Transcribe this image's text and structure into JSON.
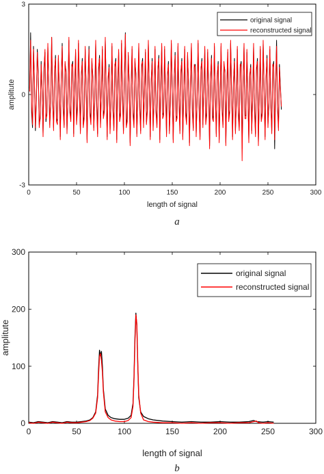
{
  "chart_data": [
    {
      "panel": "a",
      "type": "line",
      "xlabel": "length of signal",
      "ylabel": "amplitute",
      "xlim": [
        0,
        300
      ],
      "ylim": [
        -3,
        3
      ],
      "xticks": [
        0,
        50,
        100,
        150,
        200,
        250,
        300
      ],
      "yticks": [
        -3,
        0,
        3
      ],
      "grid": false,
      "legend_position": "top-right",
      "x": {
        "start": 1,
        "end": 256,
        "step": 1
      },
      "series": [
        {
          "name": "original signal",
          "color": "#000000",
          "values": [
            0.2,
            2.05,
            -0.6,
            -1.1,
            1.6,
            0.4,
            -1.2,
            -0.2,
            1.5,
            0.7,
            -1.0,
            -0.8,
            1.1,
            0.1,
            -1.3,
            0.9,
            1.4,
            -0.9,
            -0.6,
            1.6,
            0.4,
            -1.0,
            -0.3,
            1.9,
            -0.2,
            -1.1,
            0.7,
            1.3,
            -0.8,
            -0.9,
            1.2,
            0.2,
            -1.4,
            0.5,
            1.7,
            -0.4,
            -1.0,
            1.0,
            0.8,
            -1.2,
            -0.1,
            1.8,
            -0.5,
            -0.8,
            0.9,
            1.1,
            -1.3,
            0.2,
            1.4,
            -0.9,
            -0.4,
            1.7,
            0.1,
            -1.2,
            0.6,
            1.2,
            -1.0,
            -0.7,
            1.5,
            0.3,
            -1.5,
            0.4,
            1.6,
            -0.6,
            -0.9,
            1.1,
            0.6,
            -1.1,
            -0.2,
            1.7,
            -0.3,
            -1.3,
            0.8,
            1.3,
            -1.0,
            0.1,
            1.5,
            -0.7,
            -0.5,
            1.8,
            0.2,
            -1.4,
            0.5,
            1.0,
            -1.2,
            -0.3,
            1.6,
            -0.4,
            -1.1,
            0.9,
            1.2,
            -1.5,
            0.3,
            1.4,
            -0.8,
            -0.6,
            1.7,
            0.0,
            -1.2,
            0.6,
            2.05,
            -1.0,
            -0.8,
            1.3,
            0.4,
            -1.6,
            0.2,
            1.5,
            -0.6,
            -1.0,
            1.1,
            0.7,
            -1.3,
            -0.1,
            1.6,
            -0.4,
            -1.2,
            0.9,
            1.2,
            -1.0,
            0.1,
            1.4,
            -0.9,
            -0.5,
            1.7,
            0.3,
            -1.4,
            0.4,
            1.2,
            -1.1,
            -0.2,
            1.5,
            -0.5,
            -1.0,
            0.8,
            1.3,
            -1.5,
            0.2,
            1.6,
            -0.7,
            -0.6,
            1.5,
            0.1,
            -1.3,
            0.6,
            1.1,
            -1.2,
            -0.4,
            1.7,
            0.2,
            -1.5,
            0.5,
            1.4,
            -0.8,
            -0.7,
            1.6,
            -0.1,
            -1.2,
            0.7,
            1.2,
            -1.4,
            0.0,
            1.5,
            -0.6,
            -0.9,
            1.3,
            0.4,
            -1.6,
            0.3,
            1.6,
            -0.5,
            -1.1,
            0.9,
            1.0,
            -1.3,
            -0.2,
            1.7,
            -0.3,
            -1.4,
            0.8,
            1.2,
            -1.0,
            0.1,
            1.5,
            -0.9,
            -0.6,
            1.4,
            0.3,
            -1.7,
            0.5,
            1.3,
            -0.7,
            -0.8,
            1.6,
            0.0,
            -1.3,
            0.6,
            1.1,
            -1.5,
            -0.1,
            1.6,
            -0.4,
            -1.0,
            1.0,
            0.8,
            -1.6,
            0.2,
            1.4,
            -0.8,
            -0.5,
            1.7,
            0.2,
            -1.4,
            0.4,
            1.2,
            -1.2,
            -0.3,
            1.5,
            -0.6,
            -1.1,
            0.9,
            1.1,
            -1.8,
            0.3,
            1.6,
            -0.7,
            -0.7,
            1.4,
            0.1,
            -1.5,
            0.6,
            1.0,
            -1.2,
            -0.2,
            1.6,
            -0.5,
            -1.3,
            0.8,
            1.2,
            -1.6,
            0.0,
            1.5,
            -0.8,
            -0.6,
            1.7,
            0.2,
            -1.4,
            0.5,
            1.3,
            -1.0,
            -0.4,
            1.5,
            -0.3,
            -1.2,
            0.9,
            1.1,
            -1.8,
            0.2,
            1.8,
            -0.4,
            -1.1,
            1.0,
            0.3,
            -0.5
          ],
          "values_note_hidden": ""
        },
        {
          "name": "reconstructed signal",
          "color": "#ff0000",
          "values": [
            0.1,
            1.8,
            -0.4,
            -1.0,
            1.5,
            0.5,
            -1.1,
            -0.1,
            1.4,
            0.6,
            -1.1,
            -0.7,
            1.0,
            0.2,
            -1.4,
            0.8,
            1.5,
            -0.8,
            -0.7,
            1.7,
            0.3,
            -1.1,
            -0.2,
            1.9,
            -0.1,
            -1.2,
            0.8,
            1.2,
            -0.9,
            -1.0,
            1.3,
            0.1,
            -1.5,
            0.6,
            1.6,
            -0.5,
            -1.1,
            1.1,
            0.7,
            -1.3,
            0.0,
            1.9,
            -0.6,
            -0.9,
            1.0,
            1.0,
            -1.4,
            0.3,
            1.5,
            -1.0,
            -0.5,
            1.8,
            0.0,
            -1.3,
            0.7,
            1.1,
            -1.1,
            -0.8,
            1.6,
            0.2,
            -1.6,
            0.5,
            1.5,
            -0.7,
            -1.0,
            1.2,
            0.5,
            -1.2,
            -0.1,
            1.8,
            -0.4,
            -1.4,
            0.9,
            1.2,
            -1.1,
            0.2,
            1.6,
            -0.8,
            -0.6,
            1.9,
            0.1,
            -1.5,
            0.6,
            0.9,
            -1.3,
            -0.2,
            1.7,
            -0.5,
            -1.2,
            1.0,
            1.1,
            -1.6,
            0.4,
            1.5,
            -0.9,
            -0.7,
            1.8,
            -0.1,
            -1.3,
            0.7,
            2.0,
            -1.1,
            -0.9,
            1.4,
            0.3,
            -1.7,
            0.3,
            1.6,
            -0.7,
            -1.1,
            1.2,
            0.6,
            -1.4,
            0.0,
            1.7,
            -0.5,
            -1.3,
            1.0,
            1.1,
            -1.1,
            0.2,
            1.5,
            -1.0,
            -0.6,
            1.8,
            0.2,
            -1.5,
            0.5,
            1.1,
            -1.2,
            -0.1,
            1.6,
            -0.6,
            -1.1,
            0.9,
            1.2,
            -1.6,
            0.3,
            1.7,
            -0.8,
            -0.7,
            1.6,
            0.0,
            -1.4,
            0.7,
            1.0,
            -1.3,
            -0.3,
            1.8,
            0.1,
            -1.6,
            0.6,
            1.3,
            -0.9,
            -0.8,
            1.7,
            -0.2,
            -1.3,
            0.8,
            1.1,
            -1.5,
            0.1,
            1.6,
            -0.7,
            -1.0,
            1.4,
            0.3,
            -1.7,
            0.4,
            1.7,
            -0.6,
            -1.2,
            1.0,
            0.9,
            -1.4,
            -0.1,
            1.8,
            -0.4,
            -1.5,
            0.9,
            1.1,
            -1.1,
            0.2,
            1.6,
            -1.0,
            -0.7,
            1.5,
            0.2,
            -1.8,
            0.6,
            1.2,
            -0.8,
            -0.9,
            1.7,
            -0.1,
            -1.4,
            0.7,
            1.0,
            -1.6,
            0.0,
            1.7,
            -0.5,
            -1.1,
            1.1,
            0.7,
            -1.7,
            0.3,
            1.5,
            -0.9,
            -0.6,
            1.8,
            0.1,
            -1.5,
            0.5,
            1.1,
            -1.3,
            -0.2,
            1.6,
            -0.7,
            -1.2,
            1.0,
            1.0,
            -2.2,
            0.4,
            1.7,
            -0.8,
            -0.8,
            1.5,
            0.0,
            -1.6,
            0.7,
            0.9,
            -1.3,
            -0.1,
            1.7,
            -0.6,
            -1.4,
            0.9,
            1.1,
            -1.7,
            0.1,
            1.6,
            -0.9,
            -0.7,
            1.8,
            0.1,
            -1.5,
            0.6,
            1.2,
            -1.1,
            -0.3,
            1.6,
            -0.4,
            -1.3,
            1.0,
            1.0,
            -1.5,
            0.3,
            1.6,
            -0.5,
            -1.2,
            0.9,
            0.2,
            -0.4
          ]
        }
      ]
    },
    {
      "panel": "b",
      "type": "line",
      "xlabel": "length of signal",
      "ylabel": "amplitute",
      "xlim": [
        0,
        300
      ],
      "ylim": [
        0,
        300
      ],
      "xticks": [
        0,
        50,
        100,
        150,
        200,
        250,
        300
      ],
      "yticks": [
        0,
        100,
        200,
        300
      ],
      "grid": false,
      "legend_position": "top-right",
      "series": [
        {
          "name": "original signal",
          "color": "#000000",
          "points": [
            [
              0,
              2
            ],
            [
              5,
              1
            ],
            [
              10,
              3
            ],
            [
              15,
              2
            ],
            [
              20,
              1
            ],
            [
              25,
              3
            ],
            [
              30,
              2
            ],
            [
              35,
              1
            ],
            [
              40,
              3
            ],
            [
              45,
              2
            ],
            [
              50,
              2
            ],
            [
              55,
              3
            ],
            [
              60,
              4
            ],
            [
              64,
              6
            ],
            [
              67,
              10
            ],
            [
              70,
              20
            ],
            [
              72,
              50
            ],
            [
              73,
              95
            ],
            [
              74,
              128
            ],
            [
              75,
              118
            ],
            [
              76,
              126
            ],
            [
              77,
              100
            ],
            [
              78,
              60
            ],
            [
              80,
              25
            ],
            [
              83,
              14
            ],
            [
              86,
              10
            ],
            [
              90,
              8
            ],
            [
              95,
              7
            ],
            [
              100,
              7
            ],
            [
              104,
              9
            ],
            [
              107,
              14
            ],
            [
              109,
              35
            ],
            [
              110,
              80
            ],
            [
              111,
              150
            ],
            [
              112,
              193
            ],
            [
              113,
              170
            ],
            [
              114,
              100
            ],
            [
              115,
              45
            ],
            [
              117,
              20
            ],
            [
              120,
              12
            ],
            [
              125,
              8
            ],
            [
              130,
              6
            ],
            [
              140,
              4
            ],
            [
              150,
              3
            ],
            [
              160,
              2
            ],
            [
              170,
              3
            ],
            [
              180,
              2
            ],
            [
              190,
              2
            ],
            [
              200,
              3
            ],
            [
              210,
              2
            ],
            [
              220,
              2
            ],
            [
              230,
              3
            ],
            [
              235,
              5
            ],
            [
              238,
              3
            ],
            [
              245,
              2
            ],
            [
              250,
              3
            ],
            [
              256,
              2
            ]
          ]
        },
        {
          "name": "reconstructed signal",
          "color": "#ff0000",
          "points": [
            [
              0,
              1
            ],
            [
              5,
              0
            ],
            [
              10,
              2
            ],
            [
              15,
              1
            ],
            [
              20,
              0
            ],
            [
              25,
              2
            ],
            [
              30,
              1
            ],
            [
              35,
              0
            ],
            [
              40,
              2
            ],
            [
              45,
              1
            ],
            [
              50,
              1
            ],
            [
              55,
              2
            ],
            [
              60,
              3
            ],
            [
              64,
              5
            ],
            [
              67,
              9
            ],
            [
              70,
              18
            ],
            [
              72,
              45
            ],
            [
              73,
              85
            ],
            [
              74,
              118
            ],
            [
              75,
              122
            ],
            [
              76,
              110
            ],
            [
              77,
              90
            ],
            [
              78,
              55
            ],
            [
              80,
              20
            ],
            [
              83,
              10
            ],
            [
              86,
              6
            ],
            [
              90,
              4
            ],
            [
              95,
              3
            ],
            [
              100,
              3
            ],
            [
              104,
              5
            ],
            [
              107,
              10
            ],
            [
              109,
              30
            ],
            [
              110,
              75
            ],
            [
              111,
              140
            ],
            [
              112,
              190
            ],
            [
              113,
              175
            ],
            [
              114,
              105
            ],
            [
              115,
              50
            ],
            [
              117,
              18
            ],
            [
              120,
              6
            ],
            [
              125,
              3
            ],
            [
              130,
              2
            ],
            [
              140,
              1
            ],
            [
              150,
              1
            ],
            [
              160,
              0
            ],
            [
              170,
              1
            ],
            [
              180,
              0
            ],
            [
              190,
              1
            ],
            [
              200,
              1
            ],
            [
              210,
              0
            ],
            [
              220,
              1
            ],
            [
              230,
              1
            ],
            [
              238,
              4
            ],
            [
              240,
              1
            ],
            [
              245,
              0
            ],
            [
              250,
              1
            ],
            [
              256,
              0
            ]
          ]
        }
      ]
    }
  ],
  "panel_labels": {
    "a": "a",
    "b": "b"
  }
}
